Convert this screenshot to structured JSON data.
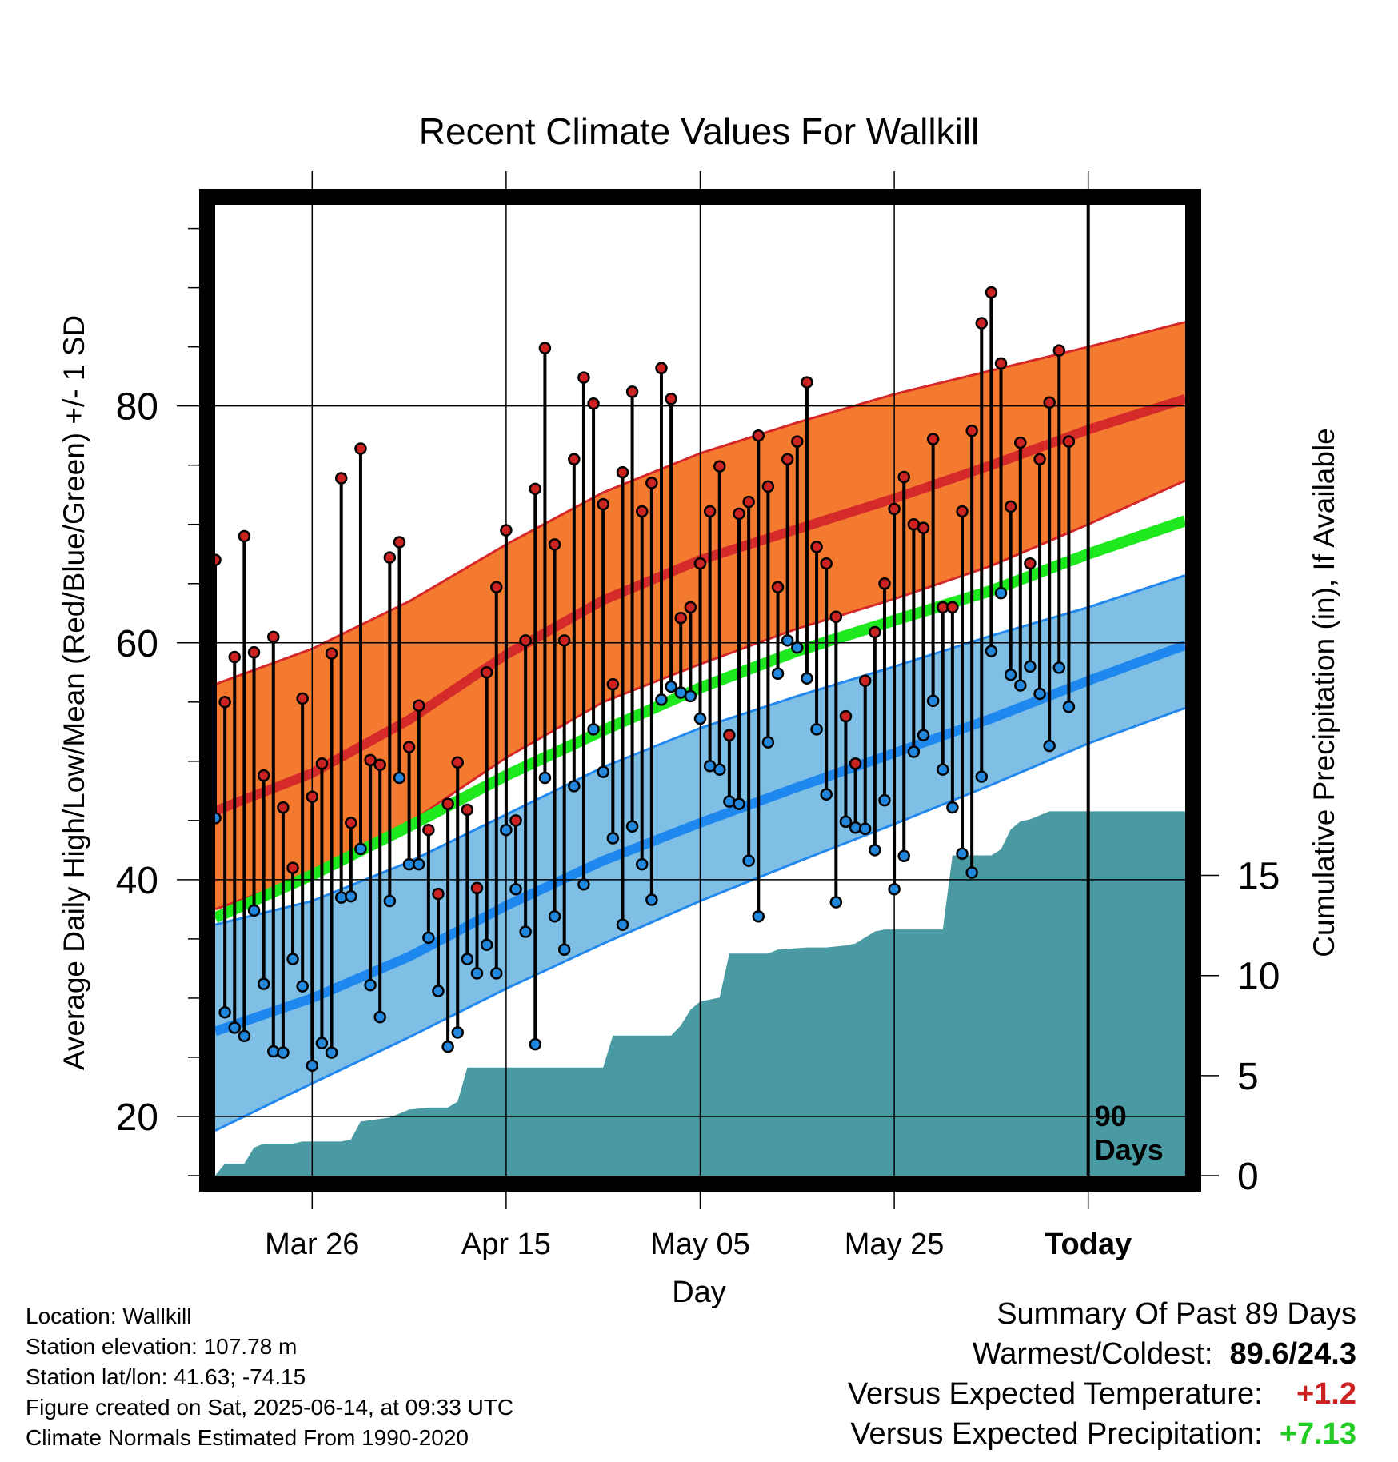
{
  "chart_data": {
    "type": "line",
    "title": "Recent Climate Values For Wallkill",
    "xlabel": "Day",
    "ylabel": "Average Daily High/Low/Mean (Red/Blue/Green) +/- 1 SD",
    "y2label": "Cumulative Precipitation (in), If Available",
    "x_tick_labels": [
      "Mar 26",
      "Apr 15",
      "May 05",
      "May 25",
      "Today"
    ],
    "x_tick_days": [
      10,
      30,
      50,
      70,
      90
    ],
    "x_range": [
      0,
      100
    ],
    "y_ticks": [
      20,
      40,
      60,
      80
    ],
    "ylim": [
      15,
      97
    ],
    "y2_ticks": [
      0,
      5,
      10,
      15
    ],
    "y2lim": [
      0,
      48.5
    ],
    "today_label": "90 Days",
    "today_day": 90,
    "normals": {
      "high_mean": [
        [
          0,
          45.8
        ],
        [
          10,
          49
        ],
        [
          20,
          53.5
        ],
        [
          30,
          59
        ],
        [
          40,
          63.6
        ],
        [
          50,
          67
        ],
        [
          60,
          69.6
        ],
        [
          70,
          72.2
        ],
        [
          80,
          75
        ],
        [
          90,
          78
        ],
        [
          100,
          80.6
        ]
      ],
      "high_upper": [
        [
          0,
          56.5
        ],
        [
          10,
          59.5
        ],
        [
          20,
          63.5
        ],
        [
          30,
          68.3
        ],
        [
          40,
          72.7
        ],
        [
          50,
          76
        ],
        [
          60,
          78.6
        ],
        [
          70,
          81
        ],
        [
          80,
          83
        ],
        [
          90,
          85
        ],
        [
          100,
          87.1
        ]
      ],
      "high_lower": [
        [
          0,
          37.5
        ],
        [
          10,
          40.5
        ],
        [
          20,
          44.8
        ],
        [
          30,
          50.3
        ],
        [
          40,
          55
        ],
        [
          50,
          58.2
        ],
        [
          60,
          61.2
        ],
        [
          70,
          63.7
        ],
        [
          80,
          66.5
        ],
        [
          90,
          70
        ],
        [
          100,
          73.7
        ]
      ],
      "mean": [
        [
          0,
          36.8
        ],
        [
          10,
          40.4
        ],
        [
          20,
          44.5
        ],
        [
          30,
          48.8
        ],
        [
          40,
          52.6
        ],
        [
          50,
          56.2
        ],
        [
          60,
          59.3
        ],
        [
          70,
          61.9
        ],
        [
          80,
          64.4
        ],
        [
          90,
          67.5
        ],
        [
          100,
          70.3
        ]
      ],
      "low_mean": [
        [
          0,
          27.2
        ],
        [
          10,
          30
        ],
        [
          20,
          33.5
        ],
        [
          30,
          37.8
        ],
        [
          40,
          41.6
        ],
        [
          50,
          44.8
        ],
        [
          60,
          47.8
        ],
        [
          70,
          50.7
        ],
        [
          80,
          53.6
        ],
        [
          90,
          56.8
        ],
        [
          100,
          59.8
        ]
      ],
      "low_upper": [
        [
          0,
          36.2
        ],
        [
          10,
          38.2
        ],
        [
          20,
          41.5
        ],
        [
          30,
          45.5
        ],
        [
          40,
          49.5
        ],
        [
          50,
          52.8
        ],
        [
          60,
          55.5
        ],
        [
          70,
          58
        ],
        [
          80,
          60.6
        ],
        [
          90,
          63
        ],
        [
          100,
          65.7
        ]
      ],
      "low_lower": [
        [
          0,
          18.8
        ],
        [
          10,
          22.8
        ],
        [
          20,
          26.7
        ],
        [
          30,
          30.8
        ],
        [
          40,
          34.6
        ],
        [
          50,
          38.2
        ],
        [
          60,
          41.5
        ],
        [
          70,
          44.7
        ],
        [
          80,
          48
        ],
        [
          90,
          51.5
        ],
        [
          100,
          54.5
        ]
      ]
    },
    "series": [
      {
        "name": "High",
        "color": "#cc2222",
        "values": [
          67.0,
          55.0,
          58.8,
          69.0,
          59.2,
          48.8,
          60.5,
          46.1,
          41.0,
          55.3,
          47.0,
          49.8,
          59.1,
          73.9,
          44.8,
          76.4,
          50.1,
          49.7,
          67.2,
          68.5,
          51.2,
          54.7,
          44.2,
          38.8,
          46.4,
          49.9,
          45.9,
          39.3,
          57.5,
          64.7,
          69.5,
          45.0,
          60.2,
          73.0,
          84.9,
          68.3,
          60.2,
          75.5,
          82.4,
          80.2,
          71.7,
          56.5,
          74.4,
          81.2,
          71.1,
          73.5,
          83.2,
          80.6,
          62.1,
          63.0,
          66.7,
          71.1,
          74.9,
          52.2,
          70.9,
          71.9,
          77.5,
          73.2,
          64.7,
          75.5,
          77.0,
          82.0,
          68.1,
          66.7,
          62.2,
          53.8,
          49.8,
          56.8,
          60.9,
          65.0,
          71.3,
          74.0,
          70.0,
          69.7,
          77.2,
          63.0,
          63.0,
          71.1,
          77.9,
          87.0,
          89.6,
          83.6,
          71.5,
          76.9,
          66.7,
          75.5,
          80.3,
          84.7,
          77.0
        ]
      },
      {
        "name": "Low",
        "color": "#2288dd",
        "values": [
          45.2,
          28.8,
          27.5,
          26.8,
          37.4,
          31.2,
          25.5,
          25.4,
          33.3,
          31.0,
          24.3,
          26.2,
          25.4,
          38.5,
          38.6,
          42.6,
          31.1,
          28.4,
          38.2,
          48.6,
          41.3,
          41.3,
          35.1,
          30.6,
          25.9,
          27.1,
          33.3,
          32.1,
          34.5,
          32.1,
          44.2,
          39.2,
          35.6,
          26.1,
          48.6,
          36.9,
          34.1,
          47.9,
          39.6,
          52.7,
          49.1,
          43.5,
          36.2,
          44.5,
          41.3,
          38.3,
          55.2,
          56.3,
          55.8,
          55.5,
          53.6,
          49.6,
          49.3,
          46.6,
          46.4,
          41.6,
          36.9,
          51.6,
          57.4,
          60.2,
          59.6,
          57.0,
          52.7,
          47.2,
          38.1,
          44.9,
          44.4,
          44.3,
          42.5,
          46.7,
          39.2,
          42.0,
          50.8,
          52.2,
          55.1,
          49.3,
          46.1,
          42.2,
          40.6,
          48.7,
          59.3,
          64.2,
          57.3,
          56.4,
          58.0,
          55.7,
          51.3,
          57.9,
          54.6
        ]
      }
    ],
    "precipitation": {
      "name": "Cumulative Precipitation",
      "color": "#4a9aa3",
      "points": [
        [
          0,
          0
        ],
        [
          1,
          0.6
        ],
        [
          3,
          0.6
        ],
        [
          4,
          1.4
        ],
        [
          5,
          1.6
        ],
        [
          8,
          1.6
        ],
        [
          9,
          1.7
        ],
        [
          13,
          1.7
        ],
        [
          14,
          1.8
        ],
        [
          15,
          2.7
        ],
        [
          18,
          2.9
        ],
        [
          20,
          3.3
        ],
        [
          22,
          3.4
        ],
        [
          24,
          3.4
        ],
        [
          25,
          3.7
        ],
        [
          26,
          5.4
        ],
        [
          36,
          5.4
        ],
        [
          40,
          5.4
        ],
        [
          41,
          7.0
        ],
        [
          47,
          7.0
        ],
        [
          48,
          7.5
        ],
        [
          49,
          8.3
        ],
        [
          50,
          8.7
        ],
        [
          51,
          8.8
        ],
        [
          52,
          8.9
        ],
        [
          53,
          11.1
        ],
        [
          57,
          11.1
        ],
        [
          58,
          11.3
        ],
        [
          61,
          11.4
        ],
        [
          63,
          11.4
        ],
        [
          65,
          11.5
        ],
        [
          66,
          11.6
        ],
        [
          68,
          12.2
        ],
        [
          69,
          12.3
        ],
        [
          73,
          12.3
        ],
        [
          75,
          12.3
        ],
        [
          76,
          16.0
        ],
        [
          80,
          16.0
        ],
        [
          81,
          16.3
        ],
        [
          82,
          17.3
        ],
        [
          83,
          17.7
        ],
        [
          84,
          17.8
        ],
        [
          86,
          18.2
        ],
        [
          100,
          18.2
        ]
      ]
    }
  },
  "footer": {
    "location": "Location: Wallkill",
    "elevation": "Station elevation: 107.78 m",
    "latlon": "Station lat/lon: 41.63; -74.15",
    "created": "Figure created on Sat, 2025-06-14, at 09:33 UTC",
    "normals_period": "Climate Normals Estimated From 1990-2020"
  },
  "summary": {
    "title": "Summary Of Past 89 Days",
    "warmest_coldest_label": "Warmest/Coldest:",
    "warmest_coldest_value": "89.6/24.3",
    "temp_label": "Versus Expected Temperature:",
    "temp_value": "+1.2",
    "temp_color": "#cc2222",
    "precip_label": "Versus Expected Precipitation:",
    "precip_value": "+7.13",
    "precip_color": "#22cc22"
  }
}
